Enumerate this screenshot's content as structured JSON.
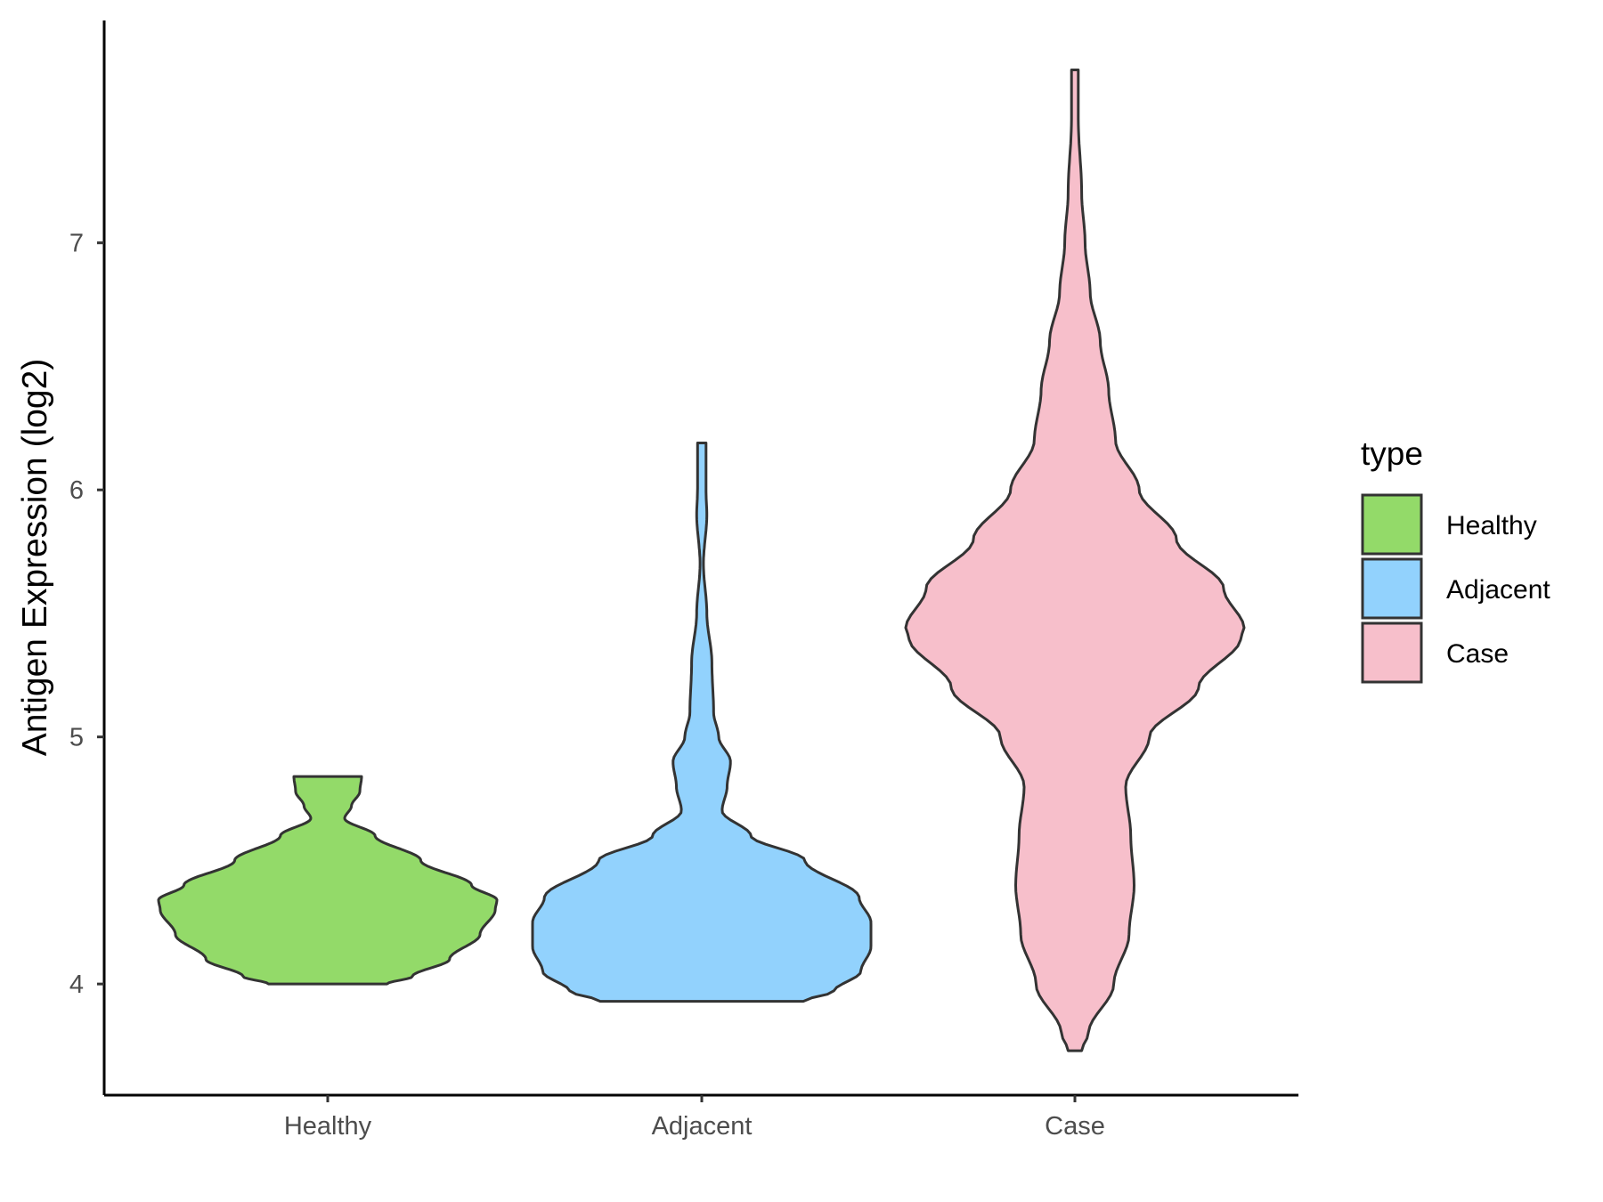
{
  "chart_data": {
    "type": "violin",
    "title": "",
    "xlabel": "",
    "ylabel": "Antigen Expression (log2)",
    "ylim": [
      3.55,
      7.9
    ],
    "y_ticks": [
      4,
      5,
      6,
      7
    ],
    "y_tick_labels": [
      "4",
      "5",
      "6",
      "7"
    ],
    "grid": false,
    "categories": [
      "Healthy",
      "Adjacent",
      "Case"
    ],
    "legend": {
      "title": "type",
      "placement": "right",
      "entries": [
        "Healthy",
        "Adjacent",
        "Case"
      ]
    },
    "series": [
      {
        "name": "Healthy",
        "color": "#93da69",
        "min": 4.0,
        "max": 4.84,
        "density_profile": [
          [
            4.0,
            0.35
          ],
          [
            4.03,
            0.5
          ],
          [
            4.1,
            0.72
          ],
          [
            4.2,
            0.9
          ],
          [
            4.3,
            0.99
          ],
          [
            4.34,
            1.0
          ],
          [
            4.4,
            0.85
          ],
          [
            4.5,
            0.55
          ],
          [
            4.6,
            0.28
          ],
          [
            4.67,
            0.1
          ],
          [
            4.72,
            0.14
          ],
          [
            4.78,
            0.19
          ],
          [
            4.84,
            0.2
          ]
        ]
      },
      {
        "name": "Adjacent",
        "color": "#92d2fd",
        "min": 3.93,
        "max": 6.19,
        "density_profile": [
          [
            3.93,
            0.6
          ],
          [
            3.97,
            0.78
          ],
          [
            4.05,
            0.94
          ],
          [
            4.15,
            1.0
          ],
          [
            4.25,
            1.0
          ],
          [
            4.35,
            0.93
          ],
          [
            4.5,
            0.61
          ],
          [
            4.6,
            0.29
          ],
          [
            4.7,
            0.12
          ],
          [
            4.8,
            0.15
          ],
          [
            4.9,
            0.17
          ],
          [
            5.0,
            0.1
          ],
          [
            5.1,
            0.07
          ],
          [
            5.3,
            0.06
          ],
          [
            5.5,
            0.03
          ],
          [
            5.7,
            0.01
          ],
          [
            5.9,
            0.03
          ],
          [
            6.0,
            0.025
          ],
          [
            6.19,
            0.025
          ]
        ]
      },
      {
        "name": "Case",
        "color": "#f7bfcb",
        "min": 3.73,
        "max": 7.7,
        "density_profile": [
          [
            3.73,
            0.04
          ],
          [
            3.8,
            0.08
          ],
          [
            4.0,
            0.23
          ],
          [
            4.2,
            0.32
          ],
          [
            4.4,
            0.35
          ],
          [
            4.6,
            0.33
          ],
          [
            4.8,
            0.3
          ],
          [
            5.0,
            0.44
          ],
          [
            5.2,
            0.73
          ],
          [
            5.4,
            0.98
          ],
          [
            5.44,
            1.0
          ],
          [
            5.6,
            0.88
          ],
          [
            5.8,
            0.6
          ],
          [
            6.0,
            0.38
          ],
          [
            6.2,
            0.24
          ],
          [
            6.4,
            0.2
          ],
          [
            6.6,
            0.15
          ],
          [
            6.8,
            0.09
          ],
          [
            7.0,
            0.06
          ],
          [
            7.2,
            0.04
          ],
          [
            7.5,
            0.02
          ],
          [
            7.7,
            0.02
          ]
        ]
      }
    ]
  }
}
